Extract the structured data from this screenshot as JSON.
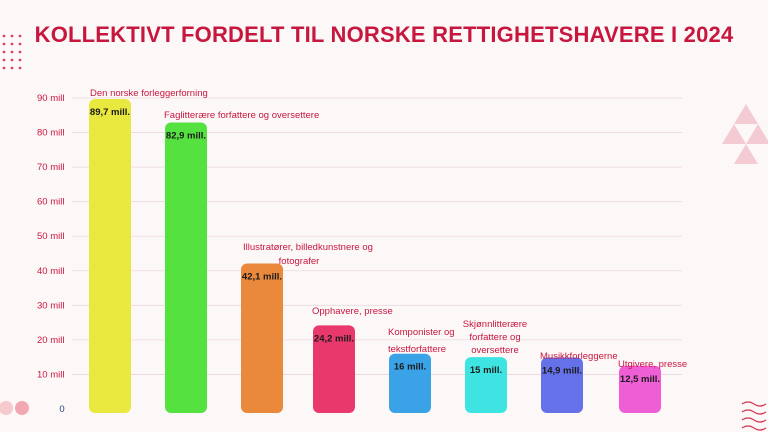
{
  "chart_data": {
    "type": "bar",
    "title": "KOLLEKTIVT FORDELT TIL NORSKE RETTIGHETSHAVERE I 2024",
    "ylim": [
      0,
      90
    ],
    "yticks": [
      "0",
      "10 mill",
      "20 mill",
      "30 mill",
      "40 mill",
      "50 mill",
      "60 mill",
      "70 mill",
      "80 mill",
      "90 mill"
    ],
    "grid": true,
    "categories": [
      "Den norske forleggerforning",
      "Faglitterære forfattere og oversettere",
      "Illustratører, billedkunstnere og fotografer",
      "Opphavere, presse",
      "Komponister og tekstforfattere",
      "Skjønnlitterære forfattere og oversettere",
      "Musikkforleggerne",
      "Utgivere, presse"
    ],
    "values": [
      89.7,
      82.9,
      42.1,
      24.2,
      16,
      15,
      14.9,
      12.5
    ],
    "data_labels": [
      "89,7 mill.",
      "82,9 mill.",
      "42,1 mill.",
      "24,2 mill.",
      "16 mill.",
      "15 mill.",
      "14,9 mill.",
      "12,5 mill."
    ],
    "colors": [
      "#e9e83e",
      "#55e241",
      "#ea883c",
      "#e8386c",
      "#3aa2e6",
      "#3ee4e2",
      "#6571e8",
      "#ee5fd6"
    ],
    "accent": "#c8173f"
  }
}
